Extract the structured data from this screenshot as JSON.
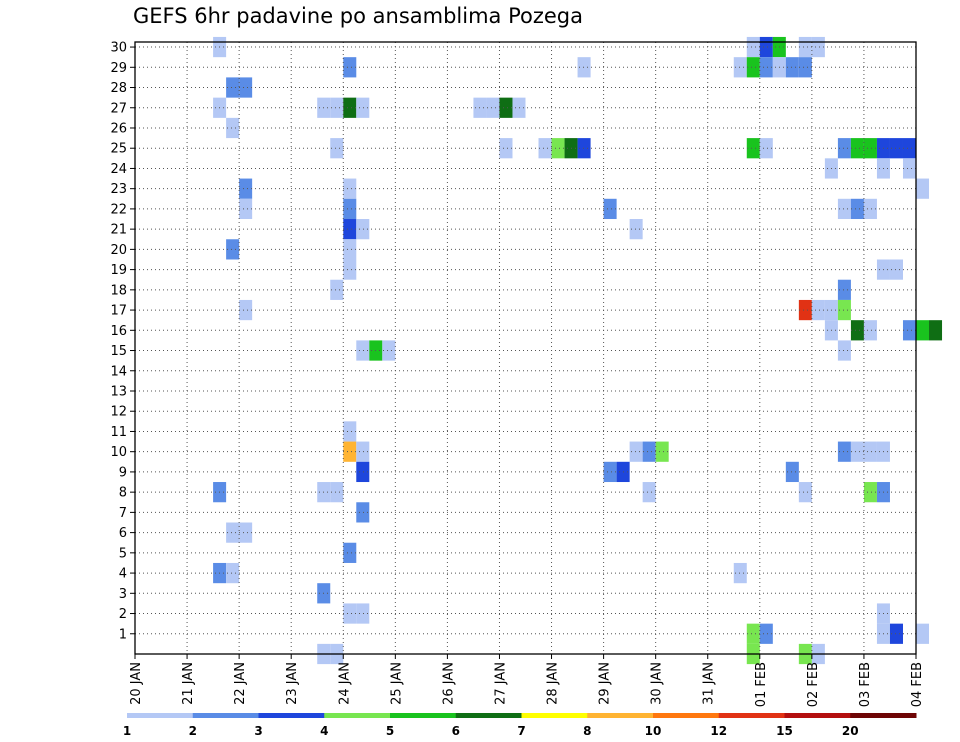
{
  "chart_data": {
    "type": "heatmap",
    "title": "GEFS 6hr padavine po ansamblima Pozega",
    "x_tick_labels": [
      "20 JAN",
      "21 JAN",
      "22 JAN",
      "23 JAN",
      "24 JAN",
      "25 JAN",
      "26 JAN",
      "27 JAN",
      "28 JAN",
      "29 JAN",
      "30 JAN",
      "31 JAN",
      "01 FEB",
      "02 FEB",
      "03 FEB",
      "04 FEB"
    ],
    "x_range_days": [
      0,
      15
    ],
    "y_tick_labels": [
      "1",
      "2",
      "3",
      "4",
      "5",
      "6",
      "7",
      "8",
      "9",
      "10",
      "11",
      "12",
      "13",
      "14",
      "15",
      "16",
      "17",
      "18",
      "19",
      "20",
      "21",
      "22",
      "23",
      "24",
      "25",
      "26",
      "27",
      "28",
      "29",
      "30"
    ],
    "y_range": [
      0,
      30
    ],
    "grid": true,
    "legend_placement": "bottom",
    "color_levels": [
      {
        "label": "1",
        "color": "#b4c8f5"
      },
      {
        "label": "2",
        "color": "#5a8ce6"
      },
      {
        "label": "3",
        "color": "#1e46dc"
      },
      {
        "label": "4",
        "color": "#78e650"
      },
      {
        "label": "5",
        "color": "#19c31e"
      },
      {
        "label": "6",
        "color": "#0f6e14"
      },
      {
        "label": "7",
        "color": "#ffff00"
      },
      {
        "label": "8",
        "color": "#ffb432"
      },
      {
        "label": "10",
        "color": "#ff780f"
      },
      {
        "label": "12",
        "color": "#e13214"
      },
      {
        "label": "15",
        "color": "#b40f0f"
      },
      {
        "label": "20",
        "color": "#6e0505"
      }
    ],
    "cells": [
      [
        1.5,
        30,
        1
      ],
      [
        11.75,
        30,
        1
      ],
      [
        12,
        30,
        3
      ],
      [
        12.25,
        30,
        5
      ],
      [
        12.75,
        30,
        1
      ],
      [
        13,
        30,
        1
      ],
      [
        4,
        29,
        2
      ],
      [
        8.5,
        29,
        1
      ],
      [
        11.5,
        29,
        1
      ],
      [
        11.75,
        29,
        5
      ],
      [
        12,
        29,
        2
      ],
      [
        12.25,
        29,
        1
      ],
      [
        12.5,
        29,
        2
      ],
      [
        12.75,
        29,
        2
      ],
      [
        1.75,
        28,
        2
      ],
      [
        2,
        28,
        2
      ],
      [
        1.5,
        27,
        1
      ],
      [
        3.5,
        27,
        1
      ],
      [
        3.75,
        27,
        1
      ],
      [
        4,
        27,
        6
      ],
      [
        4.25,
        27,
        1
      ],
      [
        6.5,
        27,
        1
      ],
      [
        6.75,
        27,
        1
      ],
      [
        7,
        27,
        6
      ],
      [
        7.25,
        27,
        1
      ],
      [
        1.75,
        26,
        1
      ],
      [
        3.75,
        25,
        1
      ],
      [
        7,
        25,
        1
      ],
      [
        7.75,
        25,
        1
      ],
      [
        8,
        25,
        4
      ],
      [
        8.25,
        25,
        6
      ],
      [
        8.5,
        25,
        3
      ],
      [
        11.75,
        25,
        5
      ],
      [
        12,
        25,
        1
      ],
      [
        13.5,
        25,
        2
      ],
      [
        13.75,
        25,
        5
      ],
      [
        14,
        25,
        5
      ],
      [
        14.25,
        25,
        3
      ],
      [
        14.5,
        25,
        3
      ],
      [
        14.75,
        25,
        3
      ],
      [
        13.25,
        24,
        1
      ],
      [
        14.25,
        24,
        1
      ],
      [
        14.75,
        24,
        1
      ],
      [
        2,
        23,
        2
      ],
      [
        4,
        23,
        1
      ],
      [
        15,
        23,
        1
      ],
      [
        2,
        22,
        1
      ],
      [
        4,
        22,
        2
      ],
      [
        9,
        22,
        2
      ],
      [
        13.5,
        22,
        1
      ],
      [
        13.75,
        22,
        2
      ],
      [
        14,
        22,
        1
      ],
      [
        4,
        21,
        3
      ],
      [
        4.25,
        21,
        1
      ],
      [
        9.5,
        21,
        1
      ],
      [
        1.75,
        20,
        2
      ],
      [
        4,
        20,
        1
      ],
      [
        4,
        19,
        1
      ],
      [
        14.25,
        19,
        1
      ],
      [
        14.5,
        19,
        1
      ],
      [
        3.75,
        18,
        1
      ],
      [
        13.5,
        18,
        2
      ],
      [
        2,
        17,
        1
      ],
      [
        12.75,
        17,
        10
      ],
      [
        13,
        17,
        1
      ],
      [
        13.25,
        17,
        1
      ],
      [
        13.5,
        17,
        4
      ],
      [
        13.25,
        16,
        1
      ],
      [
        13.75,
        16,
        6
      ],
      [
        14,
        16,
        1
      ],
      [
        14.75,
        16,
        2
      ],
      [
        15,
        16,
        5
      ],
      [
        15.25,
        16,
        6
      ],
      [
        4.25,
        15,
        1
      ],
      [
        4.5,
        15,
        5
      ],
      [
        4.75,
        15,
        1
      ],
      [
        13.5,
        15,
        1
      ],
      [
        4,
        11,
        1
      ],
      [
        4,
        10,
        8
      ],
      [
        4.25,
        10,
        1
      ],
      [
        9.5,
        10,
        1
      ],
      [
        9.75,
        10,
        2
      ],
      [
        10,
        10,
        4
      ],
      [
        13.5,
        10,
        2
      ],
      [
        13.75,
        10,
        1
      ],
      [
        14,
        10,
        1
      ],
      [
        14.25,
        10,
        1
      ],
      [
        4.25,
        9,
        3
      ],
      [
        9,
        9,
        2
      ],
      [
        9.25,
        9,
        3
      ],
      [
        12.5,
        9,
        2
      ],
      [
        1.5,
        8,
        2
      ],
      [
        3.5,
        8,
        1
      ],
      [
        3.75,
        8,
        1
      ],
      [
        9.75,
        8,
        1
      ],
      [
        12.75,
        8,
        1
      ],
      [
        14,
        8,
        4
      ],
      [
        14.25,
        8,
        2
      ],
      [
        4.25,
        7,
        2
      ],
      [
        1.75,
        6,
        1
      ],
      [
        2,
        6,
        1
      ],
      [
        4,
        5,
        2
      ],
      [
        1.5,
        4,
        2
      ],
      [
        1.75,
        4,
        1
      ],
      [
        11.5,
        4,
        1
      ],
      [
        3.5,
        3,
        2
      ],
      [
        4,
        2,
        1
      ],
      [
        4.25,
        2,
        1
      ],
      [
        14.25,
        2,
        1
      ],
      [
        11.75,
        1,
        4
      ],
      [
        12,
        1,
        2
      ],
      [
        14.25,
        1,
        1
      ],
      [
        14.5,
        1,
        3
      ],
      [
        15,
        1,
        1
      ],
      [
        3.5,
        0,
        1
      ],
      [
        3.75,
        0,
        1
      ],
      [
        11.75,
        0,
        4
      ],
      [
        12.75,
        0,
        4
      ],
      [
        13,
        0,
        1
      ]
    ]
  }
}
